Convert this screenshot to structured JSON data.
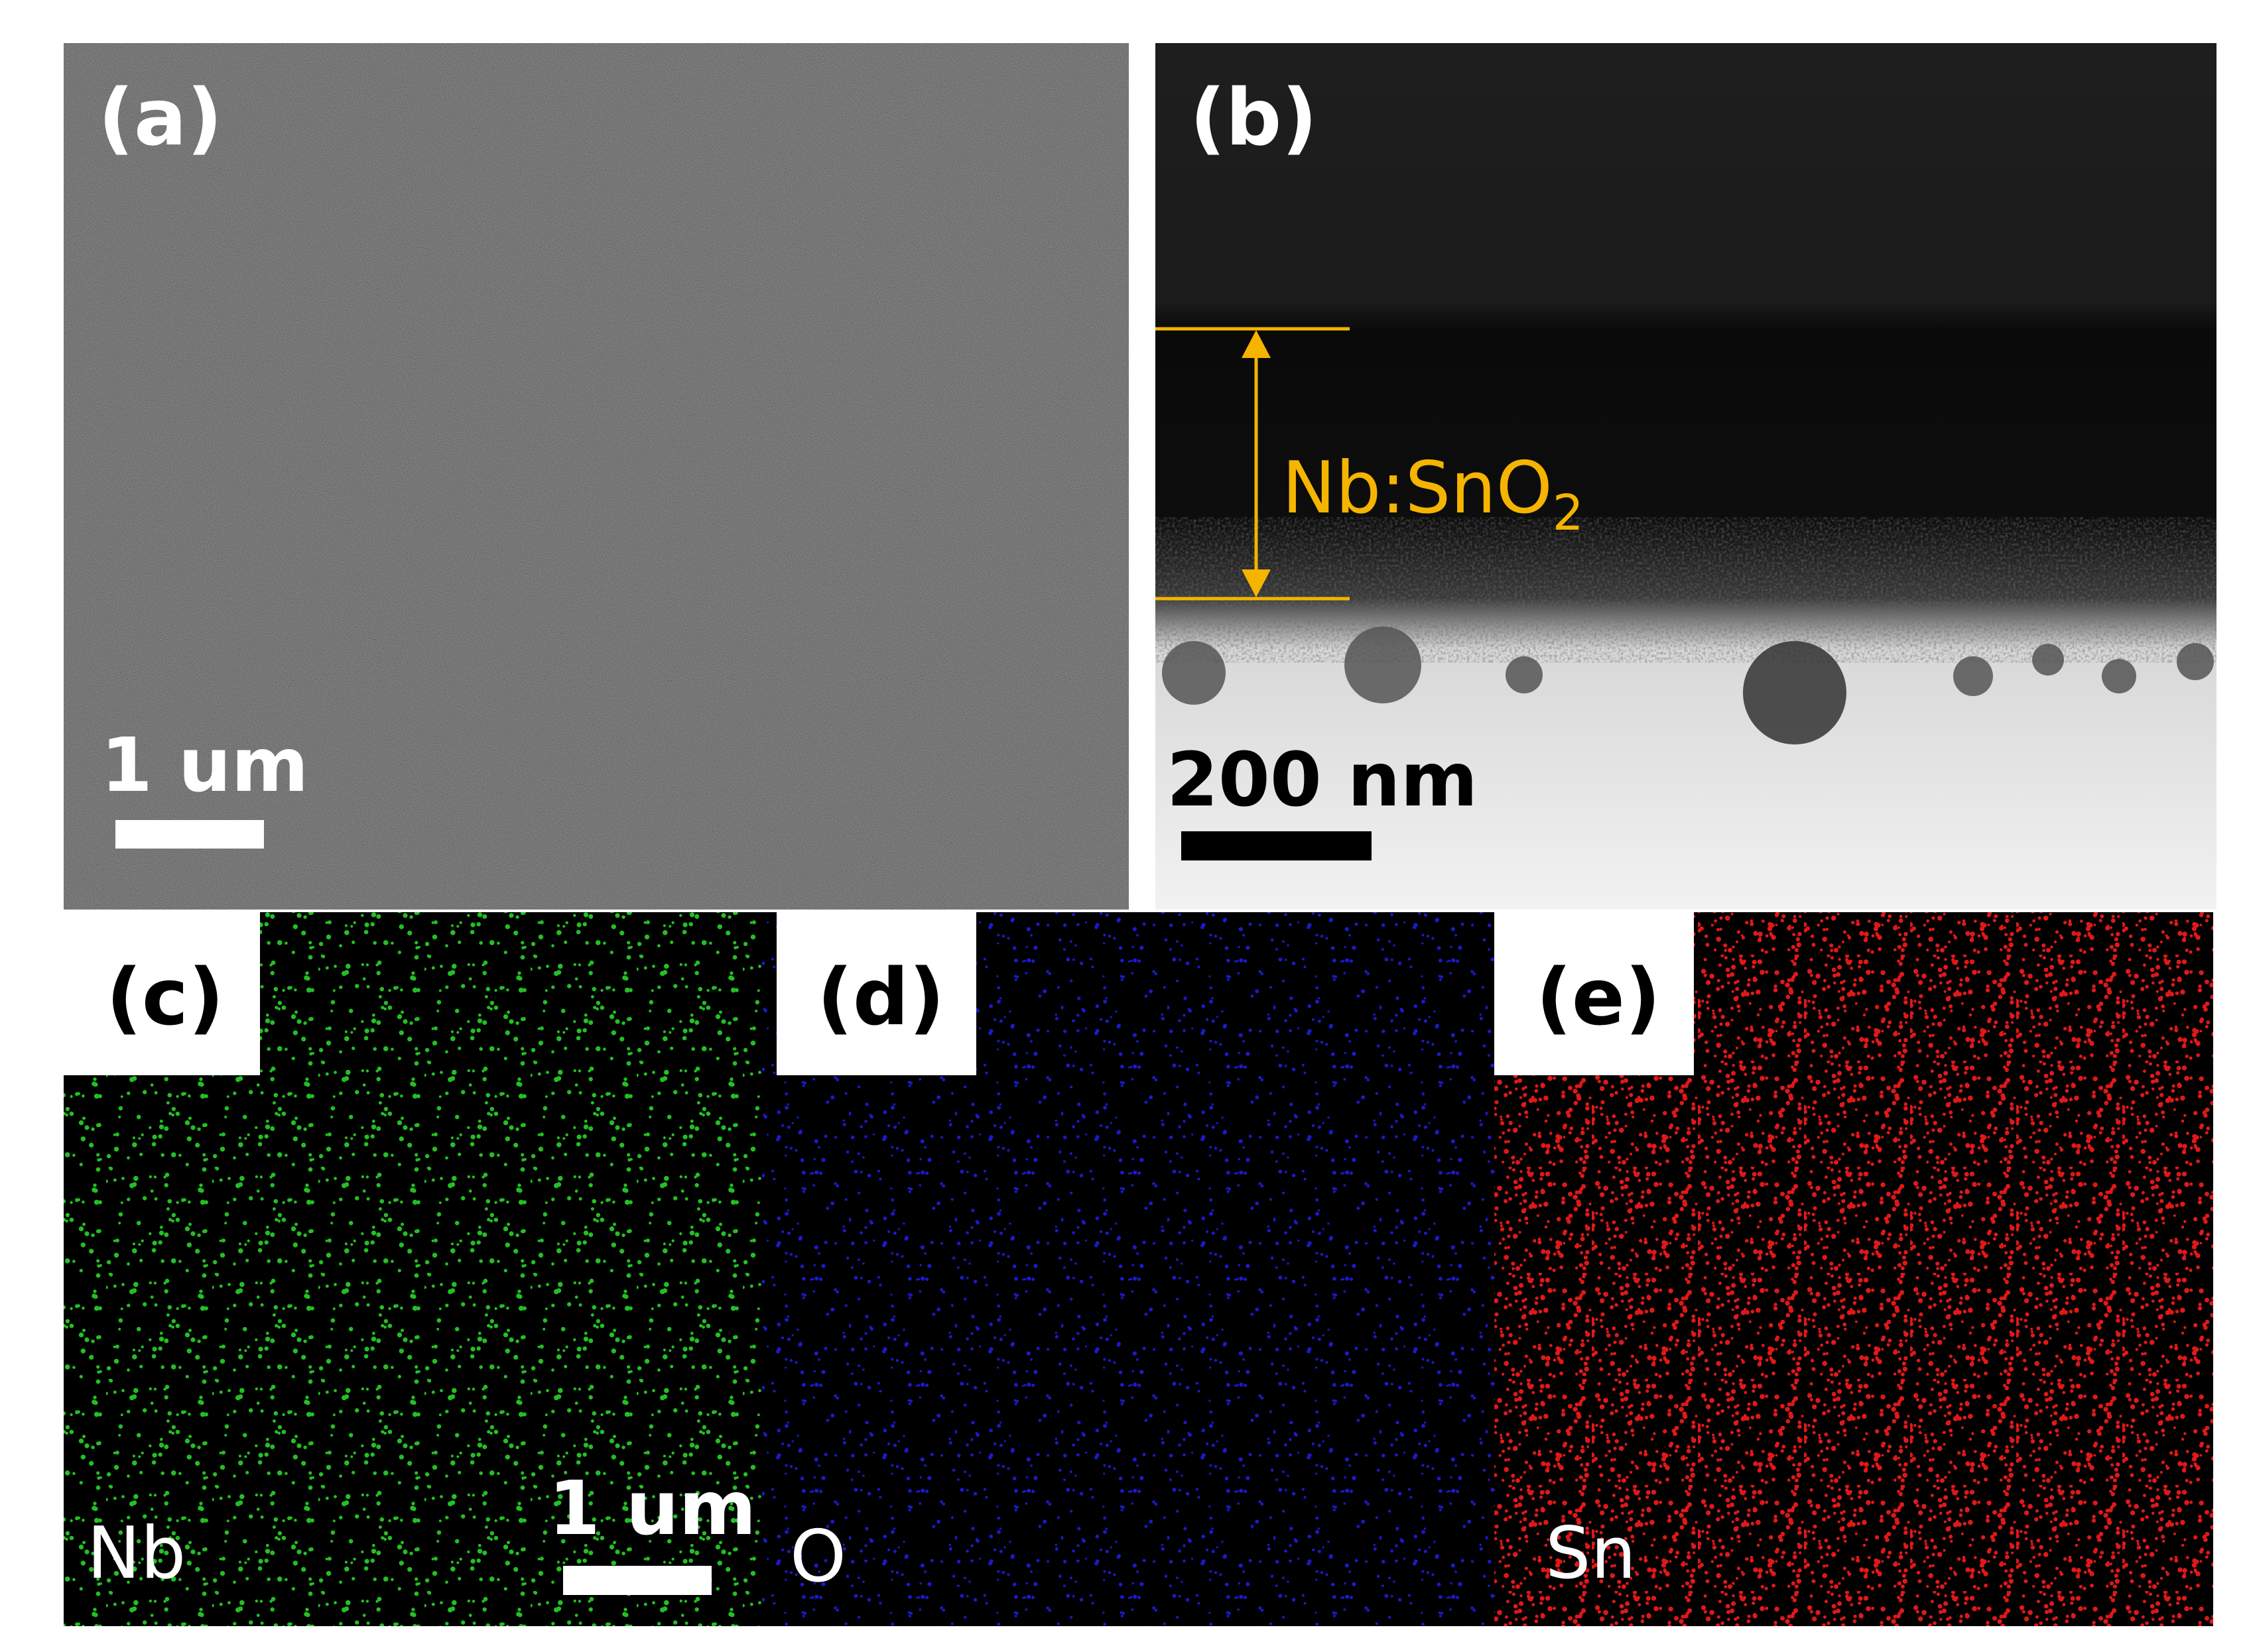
{
  "panels": [
    {
      "label": "(a)",
      "scale_bar": "1 um"
    },
    {
      "label": "(b)",
      "scale_bar": "200 nm",
      "annotation": {
        "text": "Nb:SnO",
        "subscript": "2"
      }
    },
    {
      "label": "(c)",
      "element": "Nb",
      "scale_bar": "1 um"
    },
    {
      "label": "(d)",
      "element": "O"
    },
    {
      "label": "(e)",
      "element": "Sn"
    }
  ]
}
